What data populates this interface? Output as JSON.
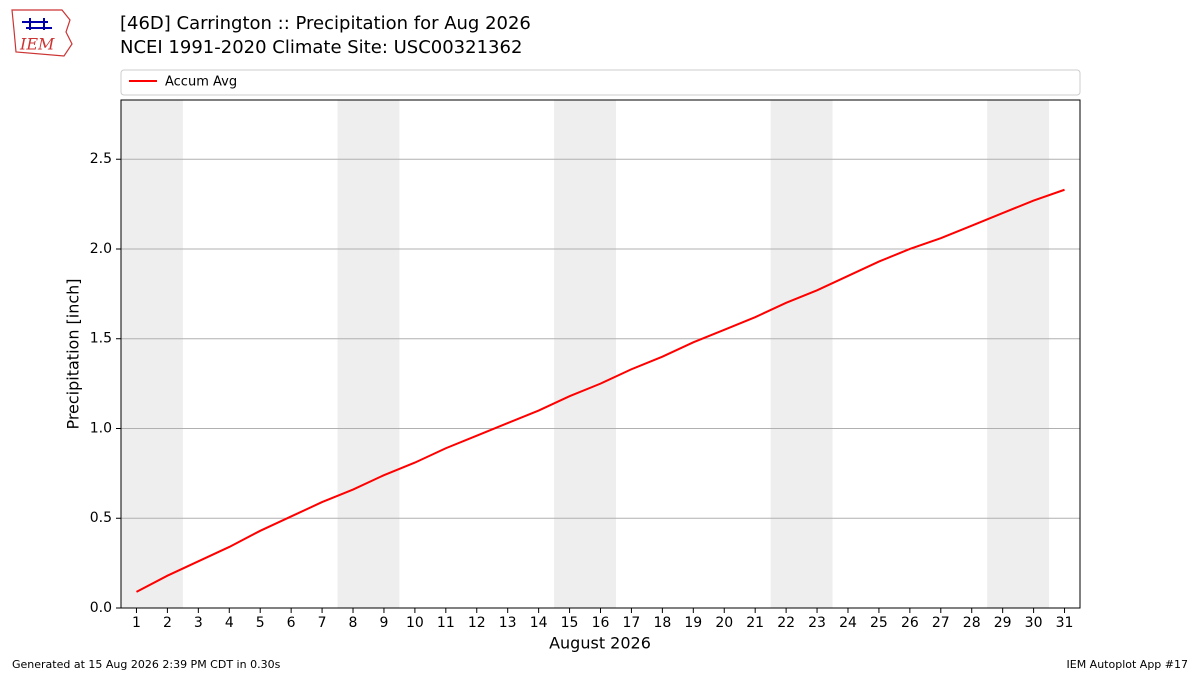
{
  "logo_text": "IEM",
  "footer_left": "Generated at 15 Aug 2026 2:39 PM CDT in 0.30s",
  "footer_right": "IEM Autoplot App #17",
  "chart_data": {
    "type": "line",
    "title": "[46D] Carrington :: Precipitation for Aug 2026",
    "subtitle": "NCEI 1991-2020 Climate Site: USC00321362",
    "xlabel": "August 2026",
    "ylabel": "Precipitation [inch]",
    "x": [
      1,
      2,
      3,
      4,
      5,
      6,
      7,
      8,
      9,
      10,
      11,
      12,
      13,
      14,
      15,
      16,
      17,
      18,
      19,
      20,
      21,
      22,
      23,
      24,
      25,
      26,
      27,
      28,
      29,
      30,
      31
    ],
    "series": [
      {
        "name": "Accum Avg",
        "color": "#ff0000",
        "values": [
          0.09,
          0.18,
          0.26,
          0.34,
          0.43,
          0.51,
          0.59,
          0.66,
          0.74,
          0.81,
          0.89,
          0.96,
          1.03,
          1.1,
          1.18,
          1.25,
          1.33,
          1.4,
          1.48,
          1.55,
          1.62,
          1.7,
          1.77,
          1.85,
          1.93,
          2.0,
          2.06,
          2.13,
          2.2,
          2.27,
          2.33
        ]
      }
    ],
    "shaded_ranges": [
      [
        0.5,
        2.5
      ],
      [
        7.5,
        9.5
      ],
      [
        14.5,
        16.5
      ],
      [
        21.5,
        23.5
      ],
      [
        28.5,
        30.5
      ]
    ],
    "shade_color": "#eeeeee",
    "xlim": [
      0.5,
      31.5
    ],
    "xticks": [
      1,
      2,
      3,
      4,
      5,
      6,
      7,
      8,
      9,
      10,
      11,
      12,
      13,
      14,
      15,
      16,
      17,
      18,
      19,
      20,
      21,
      22,
      23,
      24,
      25,
      26,
      27,
      28,
      29,
      30,
      31
    ],
    "ylim": [
      0,
      2.83
    ],
    "yticks": [
      {
        "value": 0,
        "label": "0.0"
      },
      0.5,
      {
        "value": 1,
        "label": "1.0"
      },
      1.5,
      {
        "value": 2,
        "label": "2.0"
      },
      2.5
    ],
    "grid": true,
    "legend": "top"
  }
}
